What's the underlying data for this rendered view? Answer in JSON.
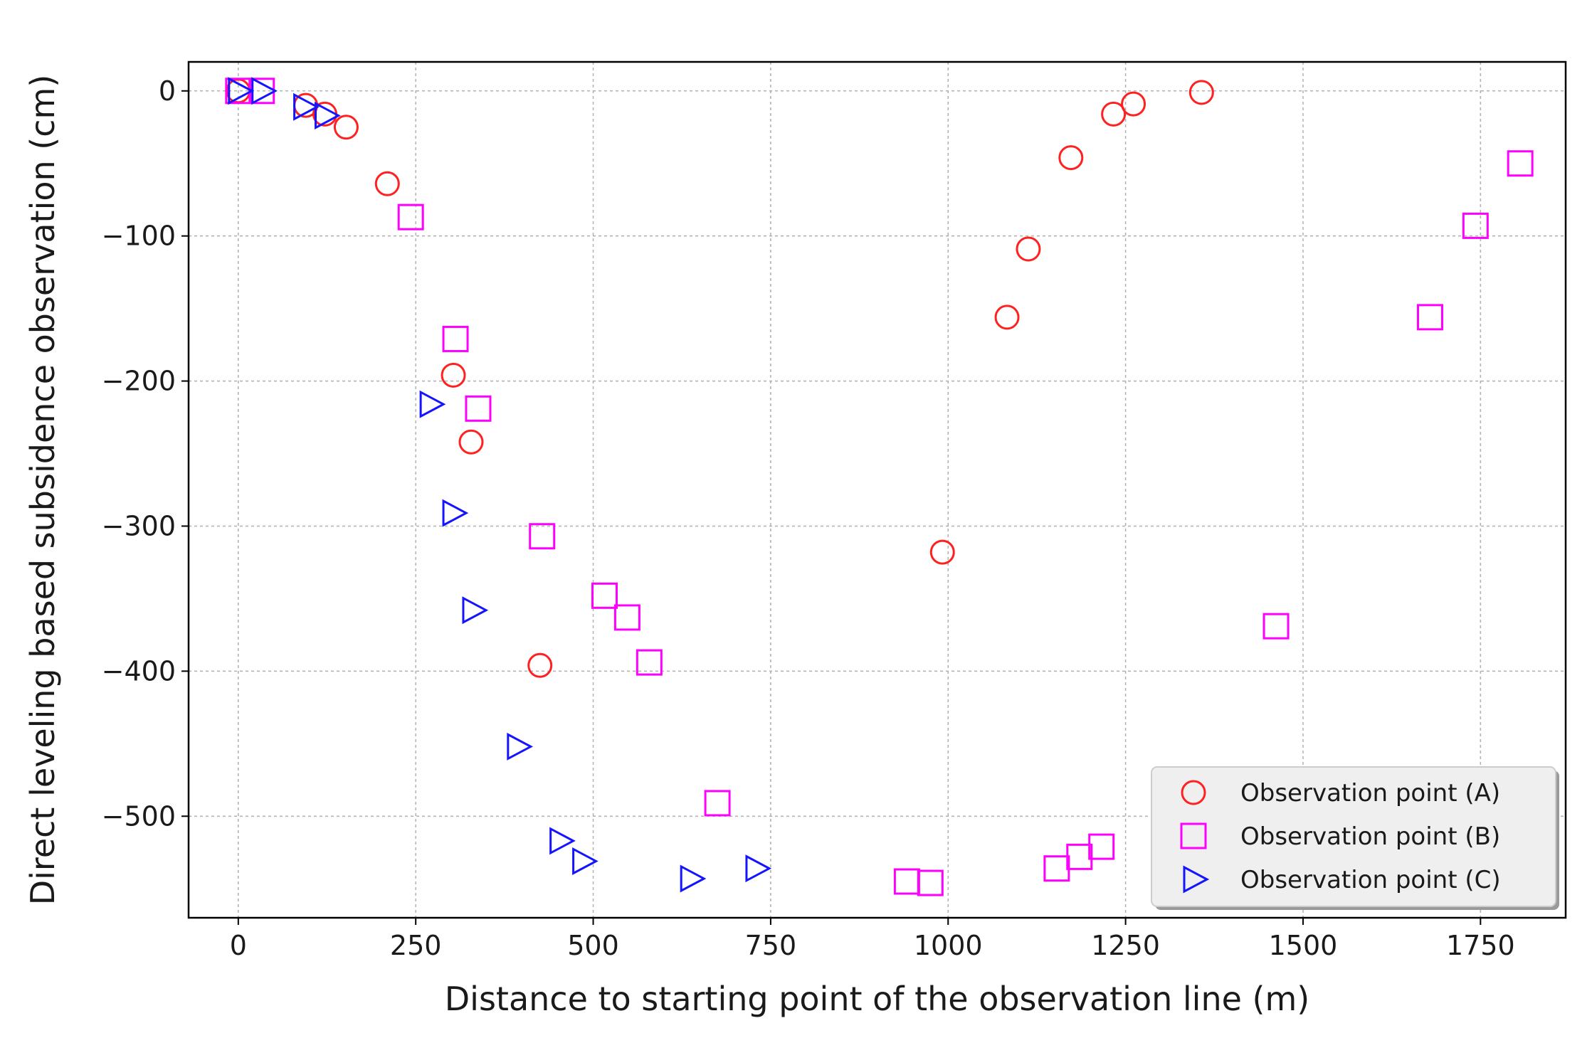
{
  "chart_data": {
    "type": "scatter",
    "xlabel": "Distance to starting point of the observation line (m)",
    "ylabel": "Direct leveling based subsidence observation (cm)",
    "xlim": [
      -70,
      1870
    ],
    "ylim": [
      -570,
      20
    ],
    "x_ticks": [
      0,
      250,
      500,
      750,
      1000,
      1250,
      1500,
      1750
    ],
    "y_ticks": [
      0,
      -100,
      -200,
      -300,
      -400,
      -500
    ],
    "x_tick_labels": [
      "0",
      "250",
      "500",
      "750",
      "1000",
      "1250",
      "1500",
      "1750"
    ],
    "y_tick_labels": [
      "0",
      "−100",
      "−200",
      "−300",
      "−400",
      "−500"
    ],
    "grid": true,
    "legend_position": "bottom-right",
    "series": [
      {
        "name": "Observation point (A)",
        "marker": "circle",
        "color": "#ff2020",
        "points": [
          [
            0,
            0
          ],
          [
            95,
            -10
          ],
          [
            122,
            -16
          ],
          [
            152,
            -25
          ],
          [
            210,
            -64
          ],
          [
            303,
            -196
          ],
          [
            328,
            -242
          ],
          [
            425,
            -396
          ],
          [
            992,
            -318
          ],
          [
            1083,
            -156
          ],
          [
            1113,
            -109
          ],
          [
            1173,
            -46
          ],
          [
            1233,
            -16
          ],
          [
            1261,
            -9
          ],
          [
            1357,
            -1
          ]
        ]
      },
      {
        "name": "Observation point (B)",
        "marker": "square",
        "color": "#ff00ff",
        "points": [
          [
            0,
            0
          ],
          [
            33,
            0
          ],
          [
            243,
            -87
          ],
          [
            306,
            -171
          ],
          [
            338,
            -219
          ],
          [
            428,
            -307
          ],
          [
            516,
            -348
          ],
          [
            548,
            -363
          ],
          [
            579,
            -394
          ],
          [
            675,
            -491
          ],
          [
            942,
            -545
          ],
          [
            975,
            -546
          ],
          [
            1153,
            -536
          ],
          [
            1185,
            -528
          ],
          [
            1216,
            -521
          ],
          [
            1462,
            -369
          ],
          [
            1679,
            -156
          ],
          [
            1743,
            -93
          ],
          [
            1806,
            -50
          ]
        ]
      },
      {
        "name": "Observation point (C)",
        "marker": "triangle-right",
        "color": "#1414ff",
        "points": [
          [
            0,
            0
          ],
          [
            33,
            0
          ],
          [
            92,
            -11
          ],
          [
            122,
            -17
          ],
          [
            270,
            -216
          ],
          [
            302,
            -291
          ],
          [
            330,
            -358
          ],
          [
            393,
            -452
          ],
          [
            453,
            -517
          ],
          [
            485,
            -531
          ],
          [
            637,
            -543
          ],
          [
            729,
            -536
          ]
        ]
      }
    ]
  }
}
